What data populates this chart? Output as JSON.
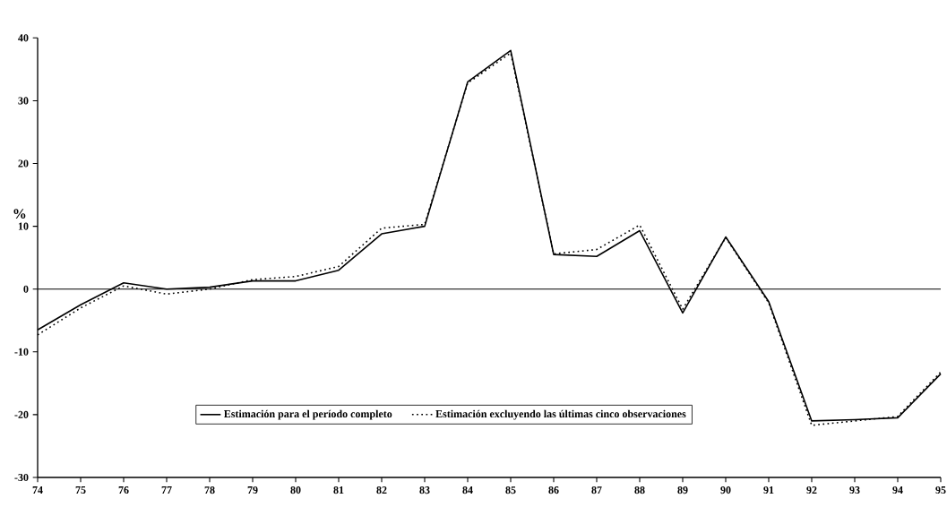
{
  "chart_data": {
    "type": "line",
    "ylabel": "%",
    "categories": [
      "74",
      "75",
      "76",
      "77",
      "78",
      "79",
      "80",
      "81",
      "82",
      "83",
      "84",
      "85",
      "86",
      "87",
      "88",
      "89",
      "90",
      "91",
      "92",
      "93",
      "94",
      "95"
    ],
    "series": [
      {
        "name": "Estimación para el período completo",
        "color": "#000000",
        "line_style": "solid",
        "values": [
          -6.5,
          -2.5,
          1.0,
          0.0,
          0.3,
          1.3,
          1.3,
          3.0,
          8.8,
          10.0,
          33.0,
          38.0,
          5.5,
          5.2,
          9.3,
          -3.8,
          8.3,
          -2.0,
          -21.0,
          -20.8,
          -20.5,
          -13.5
        ]
      },
      {
        "name": "Estimación excluyendo las últimas cinco observaciones",
        "color": "#000000",
        "line_style": "dotted",
        "values": [
          -7.3,
          -3.0,
          0.5,
          -0.8,
          0.0,
          1.5,
          2.0,
          3.6,
          9.7,
          10.3,
          32.8,
          37.6,
          5.6,
          6.3,
          10.2,
          -3.2,
          8.2,
          -2.2,
          -21.7,
          -21.0,
          -20.3,
          -13.2
        ]
      }
    ],
    "ylim": [
      -30,
      40
    ],
    "yticks": [
      -30,
      -20,
      -10,
      0,
      10,
      20,
      30,
      40
    ],
    "ref_lines": [
      {
        "axis": "y",
        "value": 0
      }
    ],
    "legend": "bottom",
    "marker": "none",
    "grid": false
  }
}
